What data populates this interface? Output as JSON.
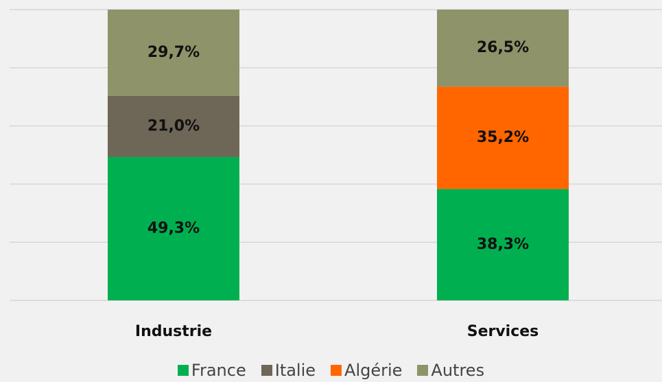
{
  "chart_data": {
    "type": "stacked_bar",
    "categories": [
      "Industrie",
      "Services"
    ],
    "series": [
      {
        "name": "France",
        "color": "#00b050",
        "values": [
          49.3,
          38.3
        ],
        "value_labels": [
          "49,3%",
          "38,3%"
        ]
      },
      {
        "name": "Italie",
        "color": "#6e6656",
        "values": [
          21.0,
          null
        ],
        "value_labels": [
          "21,0%",
          null
        ]
      },
      {
        "name": "Algérie",
        "color": "#ff6600",
        "values": [
          null,
          35.2
        ],
        "value_labels": [
          null,
          "35,2%"
        ]
      },
      {
        "name": "Autres",
        "color": "#8f936a",
        "values": [
          29.7,
          26.5
        ],
        "value_labels": [
          "29,7%",
          "26,5%"
        ]
      }
    ],
    "ylim": [
      0,
      100
    ],
    "yticks": [
      0,
      20,
      40,
      60,
      80,
      100
    ],
    "grid": true,
    "legend": "bottom"
  }
}
